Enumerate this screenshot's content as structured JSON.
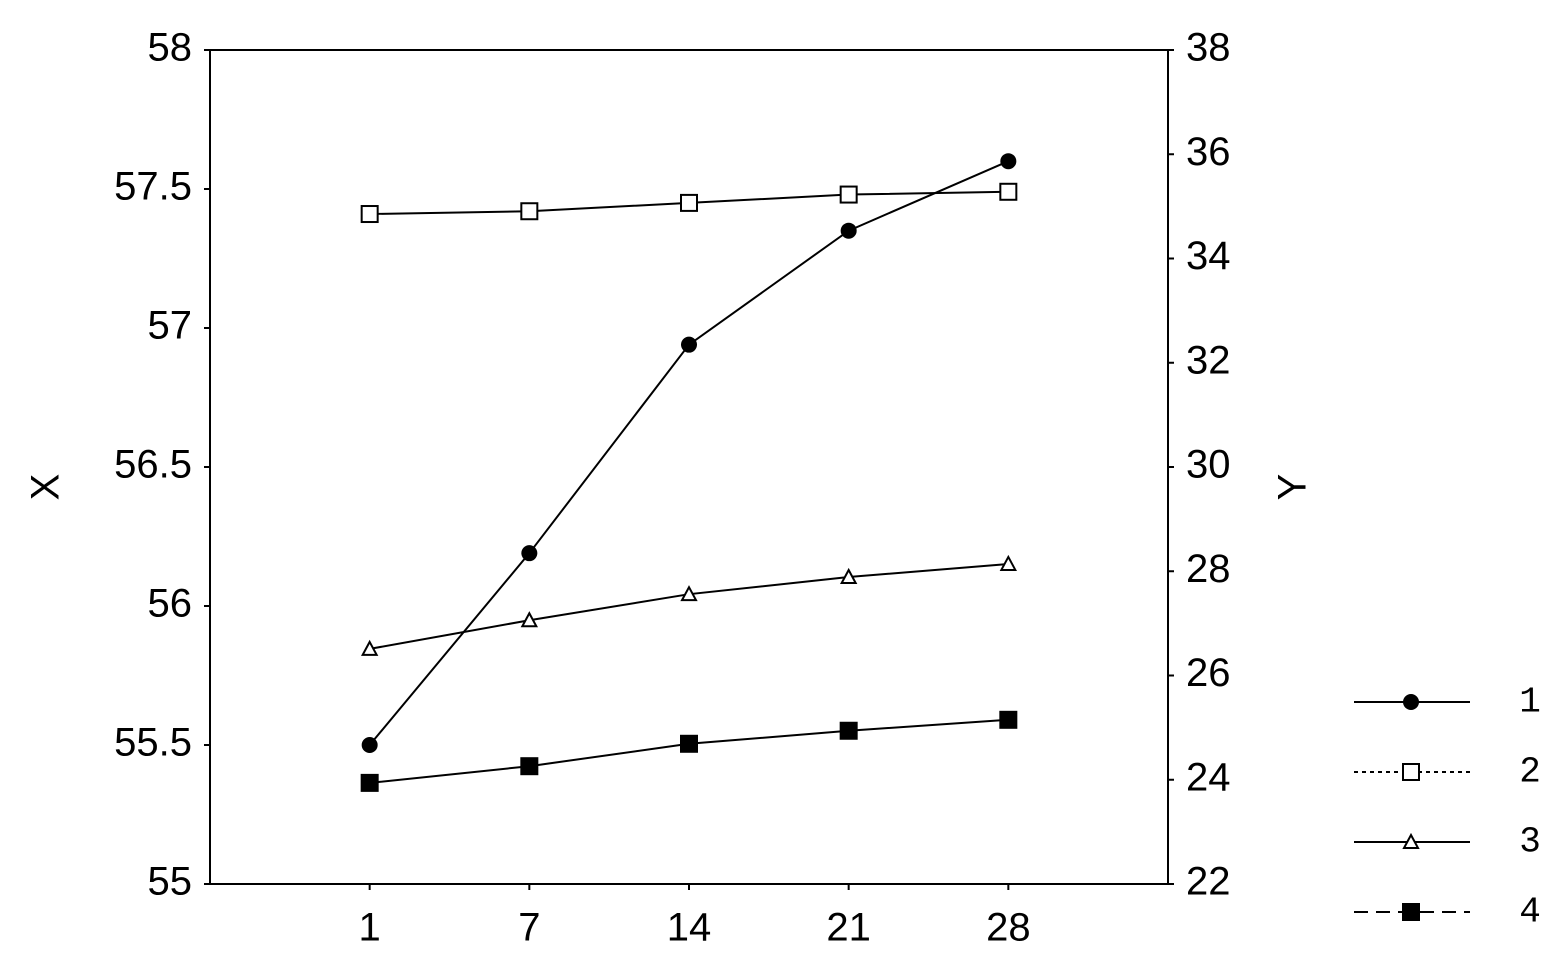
{
  "chart_data": {
    "type": "line",
    "x_label": "X",
    "y2_label": "Y",
    "categories": [
      "1",
      "7",
      "14",
      "21",
      "28"
    ],
    "ylim": [
      55,
      58
    ],
    "yticks": [
      55,
      55.5,
      56,
      56.5,
      57,
      57.5,
      58
    ],
    "y2lim": [
      22,
      38
    ],
    "y2ticks": [
      22,
      24,
      26,
      28,
      30,
      32,
      34,
      36,
      38
    ],
    "series": [
      {
        "name": "1",
        "color": "#000000",
        "marker": "circle",
        "dash": "solid",
        "values": [
          55.5,
          56.19,
          56.94,
          57.35,
          57.6
        ]
      },
      {
        "name": "2",
        "color": "#000000",
        "marker": "open-square",
        "dash": "dotted",
        "values": [
          57.41,
          57.42,
          57.45,
          57.48,
          57.49
        ]
      },
      {
        "name": "3",
        "color": "#000000",
        "marker": "open-triangle",
        "dash": "solid",
        "axis": "y2",
        "values": [
          26.51,
          27.06,
          27.56,
          27.89,
          28.14
        ]
      },
      {
        "name": "4",
        "color": "#000000",
        "marker": "square",
        "dash": "dashed",
        "axis": "y2",
        "values": [
          23.94,
          24.26,
          24.69,
          24.94,
          25.15
        ]
      }
    ]
  }
}
